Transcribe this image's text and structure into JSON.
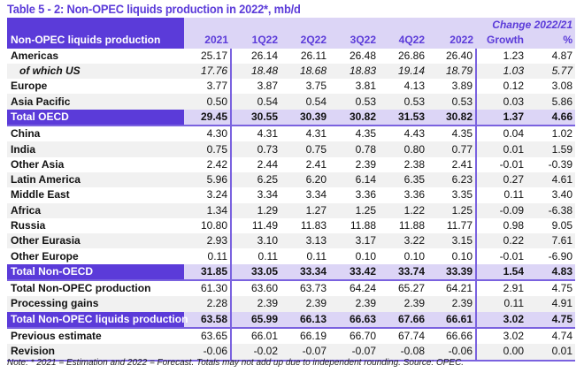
{
  "title": "Table 5 - 2: Non-OPEC liquids production in 2022*, mb/d",
  "header": {
    "label": "Non-OPEC liquids production",
    "change": "Change 2022/21",
    "columns": [
      "2021",
      "1Q22",
      "2Q22",
      "3Q22",
      "4Q22",
      "2022",
      "Growth",
      "%"
    ]
  },
  "rows": [
    {
      "label": "Americas",
      "values": [
        "25.17",
        "26.14",
        "26.11",
        "26.48",
        "26.86",
        "26.40",
        "1.23",
        "4.87"
      ],
      "style": ""
    },
    {
      "label": "of which US",
      "values": [
        "17.76",
        "18.48",
        "18.68",
        "18.83",
        "19.14",
        "18.79",
        "1.03",
        "5.77"
      ],
      "style": "sub alt"
    },
    {
      "label": "Europe",
      "values": [
        "3.77",
        "3.87",
        "3.75",
        "3.81",
        "4.13",
        "3.89",
        "0.12",
        "3.08"
      ],
      "style": ""
    },
    {
      "label": "Asia Pacific",
      "values": [
        "0.50",
        "0.54",
        "0.54",
        "0.53",
        "0.53",
        "0.53",
        "0.03",
        "5.86"
      ],
      "style": "alt"
    },
    {
      "label": "Total OECD",
      "values": [
        "29.45",
        "30.55",
        "30.39",
        "30.82",
        "31.53",
        "30.82",
        "1.37",
        "4.66"
      ],
      "style": "total b"
    },
    {
      "label": "China",
      "values": [
        "4.30",
        "4.31",
        "4.31",
        "4.35",
        "4.43",
        "4.35",
        "0.04",
        "1.02"
      ],
      "style": ""
    },
    {
      "label": "India",
      "values": [
        "0.75",
        "0.73",
        "0.75",
        "0.78",
        "0.80",
        "0.77",
        "0.01",
        "1.59"
      ],
      "style": "alt"
    },
    {
      "label": "Other Asia",
      "values": [
        "2.42",
        "2.44",
        "2.41",
        "2.39",
        "2.38",
        "2.41",
        "-0.01",
        "-0.39"
      ],
      "style": ""
    },
    {
      "label": "Latin America",
      "values": [
        "5.96",
        "6.25",
        "6.20",
        "6.14",
        "6.35",
        "6.23",
        "0.27",
        "4.61"
      ],
      "style": "alt"
    },
    {
      "label": "Middle East",
      "values": [
        "3.24",
        "3.34",
        "3.34",
        "3.36",
        "3.36",
        "3.35",
        "0.11",
        "3.40"
      ],
      "style": ""
    },
    {
      "label": "Africa",
      "values": [
        "1.34",
        "1.29",
        "1.27",
        "1.25",
        "1.22",
        "1.25",
        "-0.09",
        "-6.38"
      ],
      "style": "alt"
    },
    {
      "label": "Russia",
      "values": [
        "10.80",
        "11.49",
        "11.83",
        "11.88",
        "11.88",
        "11.77",
        "0.98",
        "9.05"
      ],
      "style": ""
    },
    {
      "label": "Other Eurasia",
      "values": [
        "2.93",
        "3.10",
        "3.13",
        "3.17",
        "3.22",
        "3.15",
        "0.22",
        "7.61"
      ],
      "style": "alt"
    },
    {
      "label": "Other Europe",
      "values": [
        "0.11",
        "0.11",
        "0.11",
        "0.10",
        "0.10",
        "0.10",
        "-0.01",
        "-6.90"
      ],
      "style": ""
    },
    {
      "label": "Total Non-OECD",
      "values": [
        "31.85",
        "33.05",
        "33.34",
        "33.42",
        "33.74",
        "33.39",
        "1.54",
        "4.83"
      ],
      "style": "total b"
    },
    {
      "label": "Total Non-OPEC production",
      "values": [
        "61.30",
        "63.60",
        "63.73",
        "64.24",
        "65.27",
        "64.21",
        "2.91",
        "4.75"
      ],
      "style": ""
    },
    {
      "label": "Processing gains",
      "values": [
        "2.28",
        "2.39",
        "2.39",
        "2.39",
        "2.39",
        "2.39",
        "0.11",
        "4.91"
      ],
      "style": "alt"
    },
    {
      "label": "Total Non-OPEC liquids production",
      "values": [
        "63.58",
        "65.99",
        "66.13",
        "66.63",
        "67.66",
        "66.61",
        "3.02",
        "4.75"
      ],
      "style": "total b"
    },
    {
      "label": "Previous estimate",
      "values": [
        "63.65",
        "66.01",
        "66.19",
        "66.70",
        "67.74",
        "66.66",
        "3.02",
        "4.74"
      ],
      "style": ""
    },
    {
      "label": "Revision",
      "values": [
        "-0.06",
        "-0.02",
        "-0.07",
        "-0.07",
        "-0.08",
        "-0.06",
        "0.00",
        "0.01"
      ],
      "style": "alt last"
    }
  ],
  "note": "Note: * 2021 = Estimation and 2022 = Forecast. Totals may not add up due to independent rounding. Source: OPEC."
}
